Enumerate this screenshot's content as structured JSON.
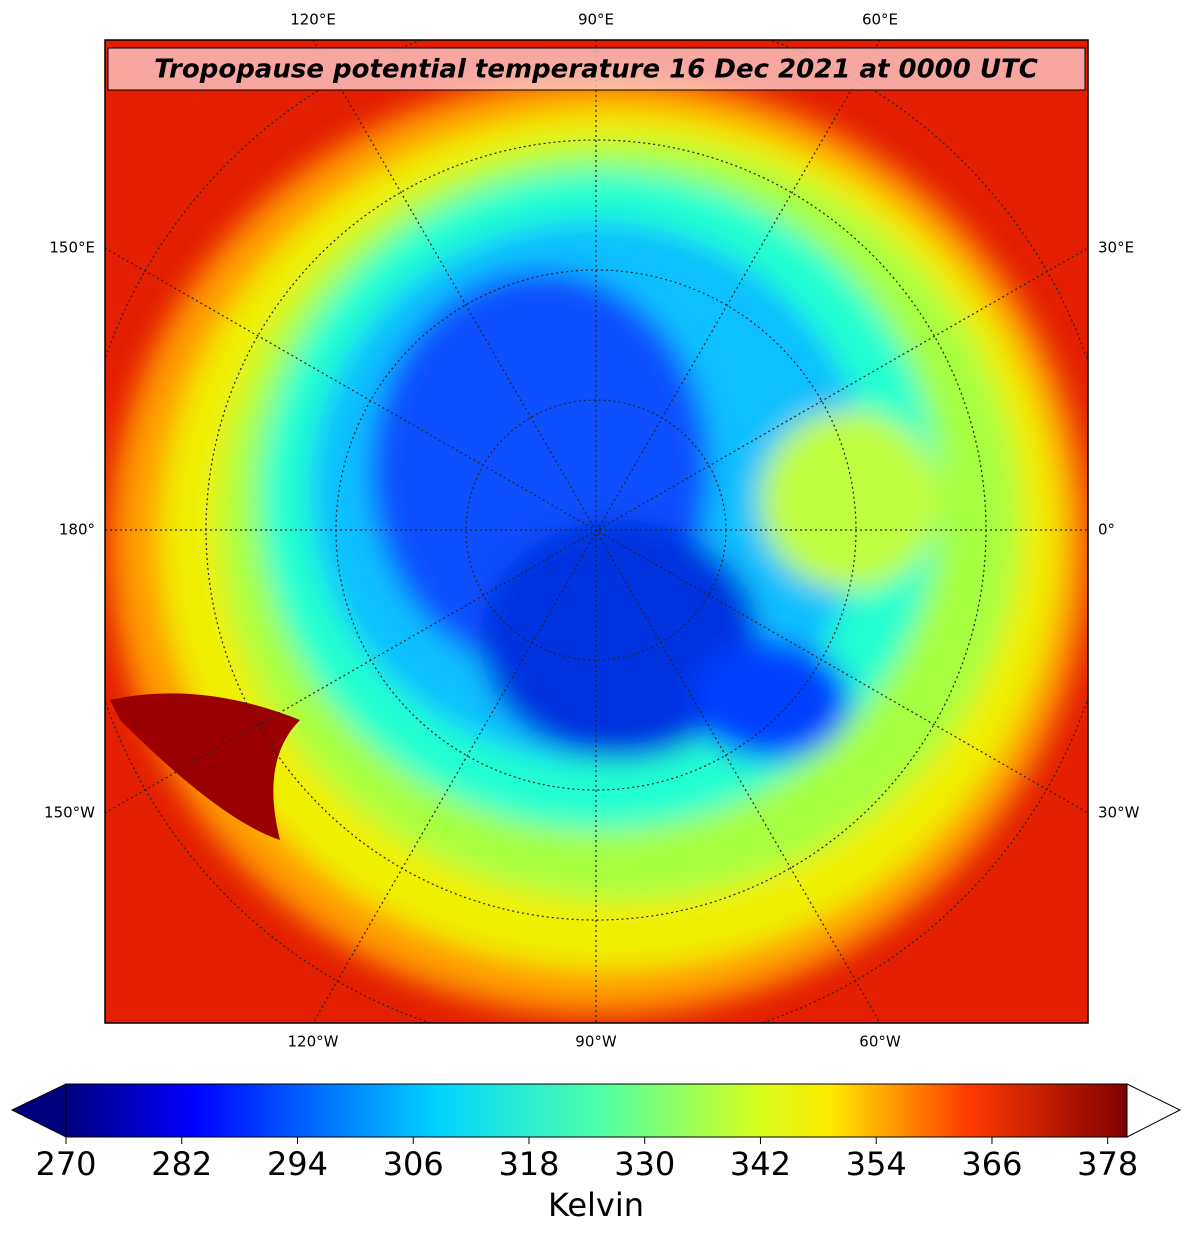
{
  "title": "Tropopause potential temperature 16 Dec 2021 at 0000 UTC",
  "map_labels": {
    "top": [
      "120°E",
      "90°E",
      "60°E"
    ],
    "bottom": [
      "120°W",
      "90°W",
      "60°W"
    ],
    "left": [
      "150°E",
      "180°",
      "150°W"
    ],
    "right": [
      "30°E",
      "0°",
      "30°W"
    ]
  },
  "colorbar": {
    "label": "Kelvin",
    "lim": [
      270,
      380
    ],
    "ticks": [
      270,
      282,
      294,
      306,
      318,
      330,
      342,
      354,
      366,
      378
    ]
  }
}
